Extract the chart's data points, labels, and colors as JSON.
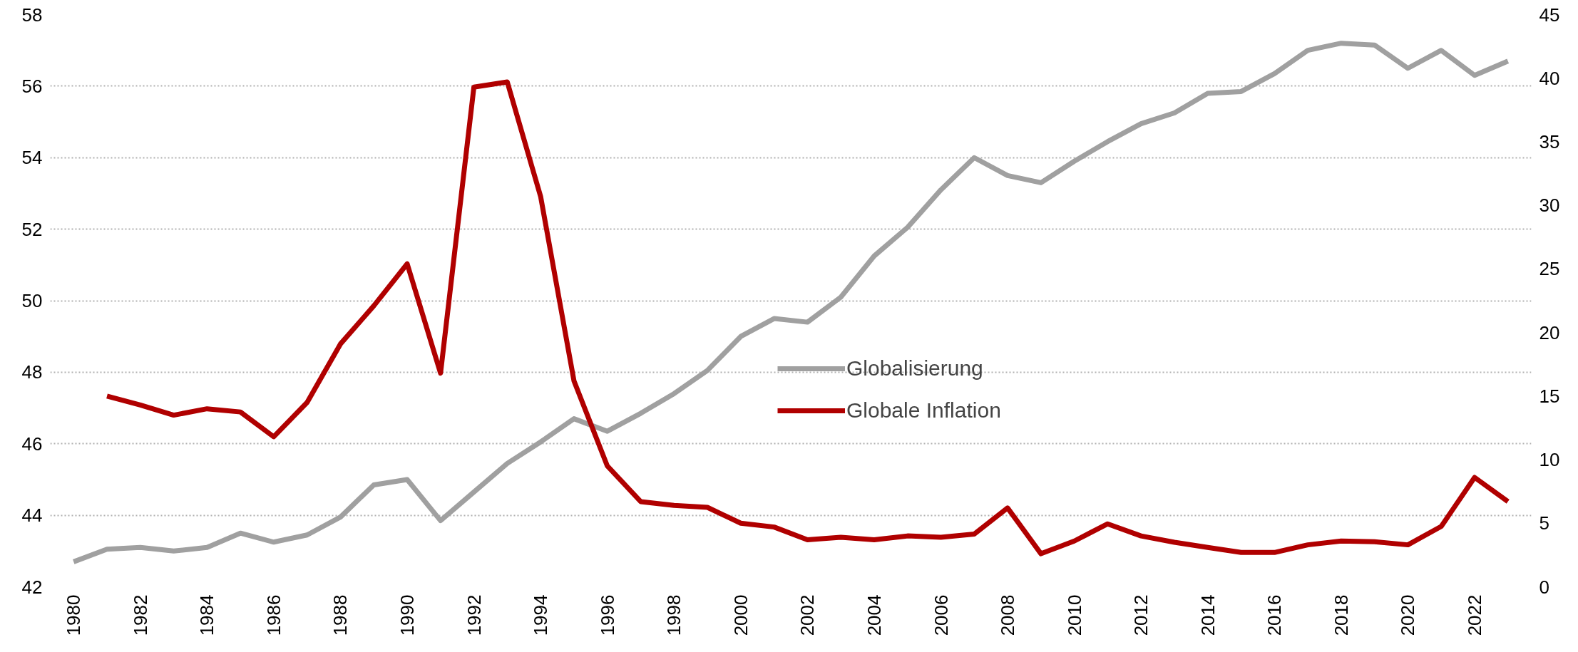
{
  "chart_data": {
    "type": "line",
    "x": [
      1980,
      1981,
      1982,
      1983,
      1984,
      1985,
      1986,
      1987,
      1988,
      1989,
      1990,
      1991,
      1992,
      1993,
      1994,
      1995,
      1996,
      1997,
      1998,
      1999,
      2000,
      2001,
      2002,
      2003,
      2004,
      2005,
      2006,
      2007,
      2008,
      2009,
      2010,
      2011,
      2012,
      2013,
      2014,
      2015,
      2016,
      2017,
      2018,
      2019,
      2020,
      2021,
      2022,
      2023
    ],
    "xlim": [
      1979.3,
      2023.7
    ],
    "xticks": [
      1980,
      1982,
      1984,
      1986,
      1988,
      1990,
      1992,
      1994,
      1996,
      1998,
      2000,
      2002,
      2004,
      2006,
      2008,
      2010,
      2012,
      2014,
      2016,
      2018,
      2020,
      2022
    ],
    "ylim": [
      42,
      58
    ],
    "yticks": [
      42,
      44,
      46,
      48,
      50,
      52,
      54,
      56,
      58
    ],
    "y2lim": [
      0,
      45
    ],
    "y2ticks": [
      0,
      5,
      10,
      15,
      20,
      25,
      30,
      35,
      40,
      45
    ],
    "grid": "y",
    "legend": "right",
    "line_style": "solid",
    "marker": "none",
    "series": [
      {
        "name": "Globalisierung",
        "color": "#a0a0a0",
        "values": [
          42.7,
          43.05,
          43.1,
          43.0,
          43.1,
          43.5,
          43.25,
          43.45,
          43.95,
          44.85,
          45.0,
          43.85,
          44.65,
          45.45,
          46.05,
          46.7,
          46.35,
          46.85,
          47.4,
          48.05,
          49.0,
          49.5,
          49.4,
          50.1,
          51.25,
          52.05,
          53.1,
          54.0,
          53.5,
          53.3,
          53.9,
          54.45,
          54.95,
          55.25,
          55.8,
          55.85,
          56.35,
          57.0,
          57.2,
          57.15,
          56.5,
          57.0,
          56.3,
          56.7
        ]
      },
      {
        "name": "Globale Inflation",
        "color": "#b00000",
        "axis": "y2",
        "values": [
          null,
          15.0,
          14.3,
          13.5,
          14.0,
          13.75,
          11.8,
          14.5,
          19.1,
          22.1,
          25.4,
          16.8,
          39.3,
          39.7,
          30.7,
          16.2,
          9.5,
          6.7,
          6.4,
          6.25,
          5.0,
          4.7,
          3.7,
          3.9,
          3.7,
          4.0,
          3.9,
          4.15,
          6.2,
          2.6,
          3.6,
          4.95,
          4.0,
          3.5,
          3.1,
          2.7,
          2.7,
          3.3,
          3.6,
          3.55,
          3.3,
          4.75,
          8.6,
          6.7
        ]
      }
    ]
  }
}
